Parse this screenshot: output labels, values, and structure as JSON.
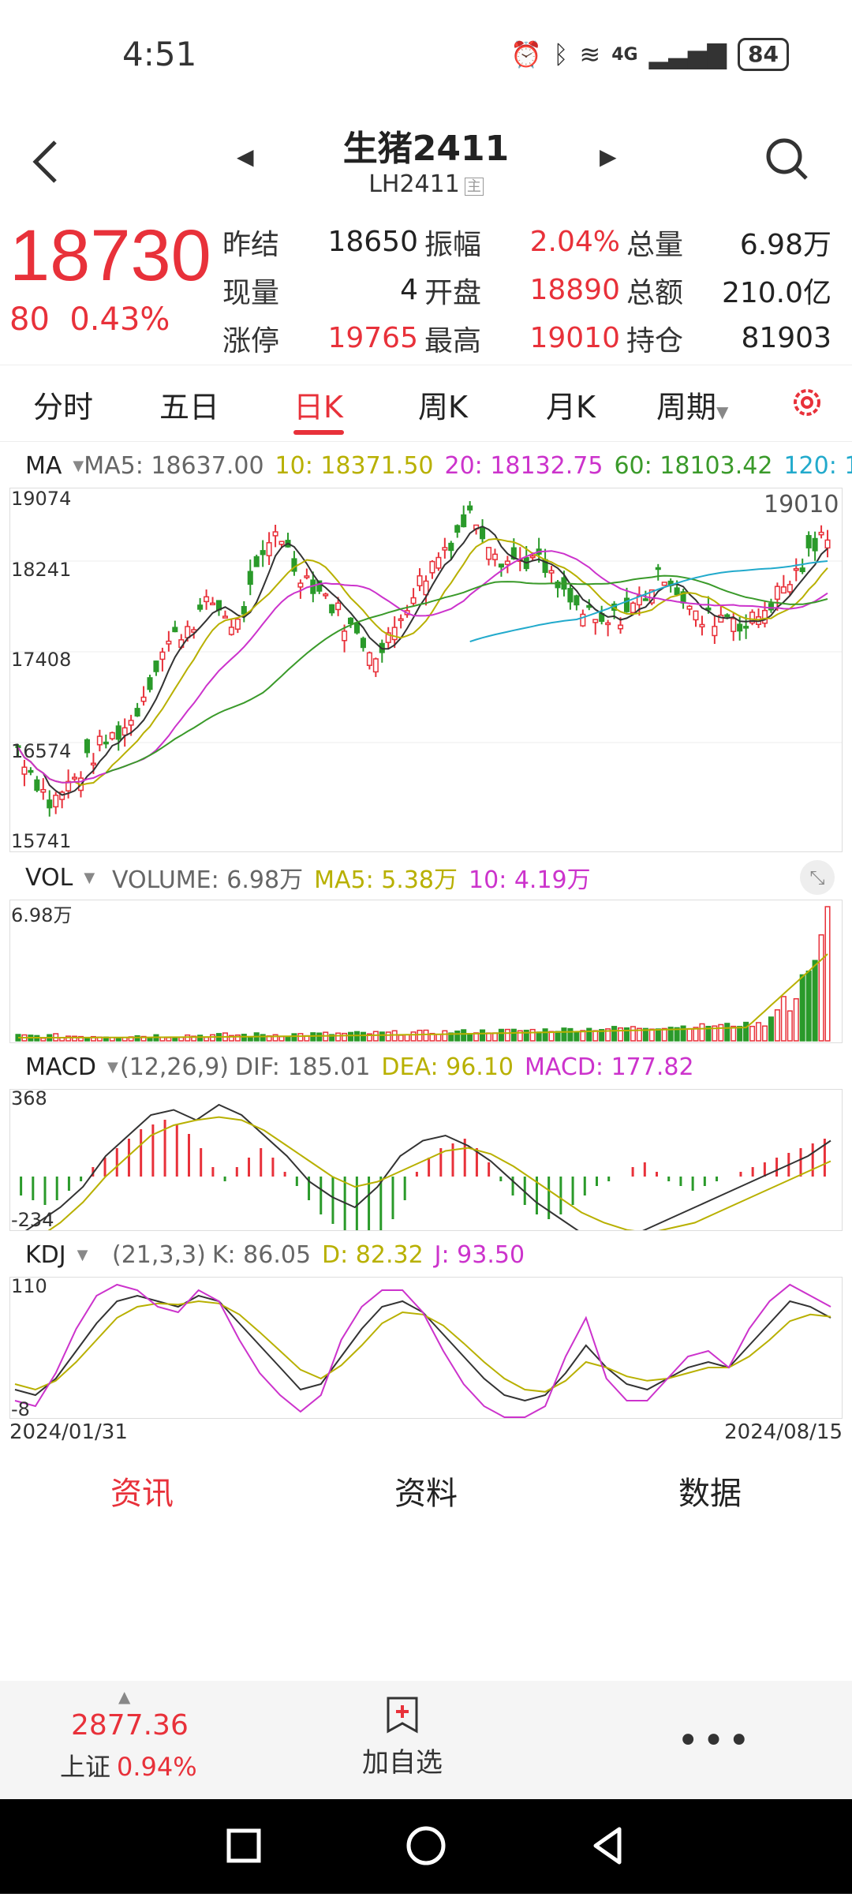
{
  "status_bar": {
    "time": "4:51",
    "battery": "84",
    "network": "4G"
  },
  "header": {
    "title": "生猪2411",
    "code": "LH2411",
    "badge": "主"
  },
  "quote": {
    "price": "18730",
    "change": "80",
    "change_pct": "0.43%",
    "rows": [
      [
        {
          "label": "昨结",
          "value": "18650",
          "color": "#222"
        },
        {
          "label": "振幅",
          "value": "2.04%",
          "color": "#e8313a"
        },
        {
          "label": "总量",
          "value": "6.98万",
          "color": "#222"
        }
      ],
      [
        {
          "label": "现量",
          "value": "4",
          "color": "#222"
        },
        {
          "label": "开盘",
          "value": "18890",
          "color": "#e8313a"
        },
        {
          "label": "总额",
          "value": "210.0亿",
          "color": "#222"
        }
      ],
      [
        {
          "label": "涨停",
          "value": "19765",
          "color": "#e8313a"
        },
        {
          "label": "最高",
          "value": "19010",
          "color": "#e8313a"
        },
        {
          "label": "持仓",
          "value": "81903",
          "color": "#222"
        }
      ]
    ]
  },
  "tabs": [
    "分时",
    "五日",
    "日K",
    "周K",
    "月K",
    "周期"
  ],
  "active_tab": "日K",
  "ma_header": {
    "name": "MA",
    "ma5": "MA5: 18637.00",
    "ma10": "10: 18371.50",
    "ma20": "20: 18132.75",
    "ma60": "60: 18103.42",
    "ma120": "120: 1"
  },
  "vol_header": {
    "name": "VOL",
    "volume": "VOLUME: 6.98万",
    "ma5": "MA5: 5.38万",
    "ma10": "10: 4.19万"
  },
  "macd_header": {
    "name": "MACD",
    "params": "(12,26,9)",
    "dif": "DIF: 185.01",
    "dea": "DEA: 96.10",
    "macd": "MACD: 177.82"
  },
  "kdj_header": {
    "name": "KDJ",
    "params": "(21,3,3)",
    "k": "K: 86.05",
    "d": "D: 82.32",
    "j": "J: 93.50"
  },
  "chart_data": {
    "type": "candlestick",
    "price_axis": [
      "19074",
      "18241",
      "17408",
      "16574",
      "15741"
    ],
    "high_label": "19010",
    "vol_axis": "6.98万",
    "macd_axis": [
      "368",
      "-234"
    ],
    "kdj_axis": [
      "110",
      "-8"
    ],
    "start_date": "2024/01/31",
    "end_date": "2024/08/15",
    "ylim": [
      15741,
      19074
    ],
    "last_close": 18730
  },
  "info_tabs": [
    "资讯",
    "资料",
    "数据"
  ],
  "bottom": {
    "index_value": "2877.36",
    "index_name": "上证",
    "index_pct": "0.94%",
    "fav_label": "加自选",
    "more": "•••"
  },
  "colors": {
    "up": "#e8313a",
    "down": "#2a9a2a",
    "ma5": "#333333",
    "ma10": "#b8b000",
    "ma20": "#cc33cc",
    "ma60": "#3a9a2a",
    "ma120": "#22aacc"
  }
}
